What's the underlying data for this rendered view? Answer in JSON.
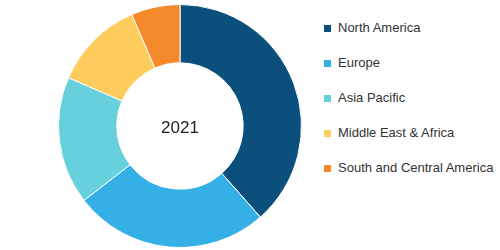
{
  "chart_data": {
    "type": "doughnut",
    "title": "2021",
    "categories": [
      "North America",
      "Europe",
      "Asia Pacific",
      "Middle East & Africa",
      "South and Central America"
    ],
    "values": [
      38.5,
      26,
      17,
      12,
      6.5
    ],
    "colors": [
      "#0b4f7c",
      "#34b0e6",
      "#66d0dc",
      "#fdcc5c",
      "#f4892a"
    ],
    "legend": "right"
  }
}
